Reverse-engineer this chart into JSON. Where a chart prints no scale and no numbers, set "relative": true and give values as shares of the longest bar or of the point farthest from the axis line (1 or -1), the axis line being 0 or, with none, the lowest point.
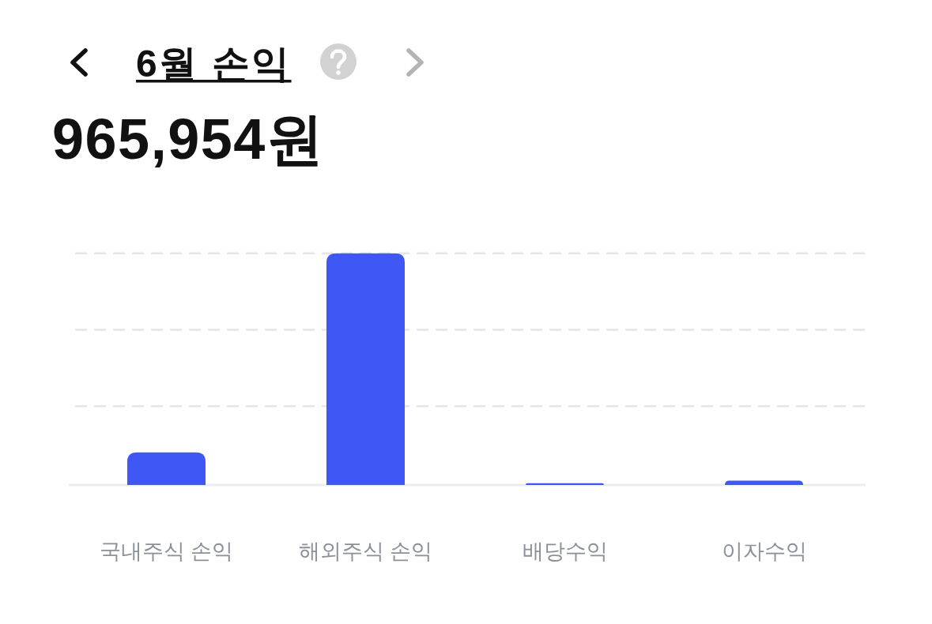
{
  "chart_data": {
    "type": "bar",
    "title": "6월 손익",
    "subtitle": "965,954원",
    "categories": [
      "국내주식 손익",
      "해외주식 손익",
      "배당수익",
      "이자수익"
    ],
    "values": [
      0.141,
      1,
      0.008,
      0.019
    ],
    "color": "#3f57f5",
    "relative": true,
    "ref_lines": [
      {
        "axis": "y",
        "value": 0.34,
        "color": "#e6e6e9",
        "line_style": "dashed"
      },
      {
        "axis": "y",
        "value": 0.67,
        "color": "#e6e6e9",
        "line_style": "dashed"
      },
      {
        "axis": "y",
        "value": 1,
        "color": "#e6e6e9",
        "line_style": "dashed"
      }
    ]
  }
}
